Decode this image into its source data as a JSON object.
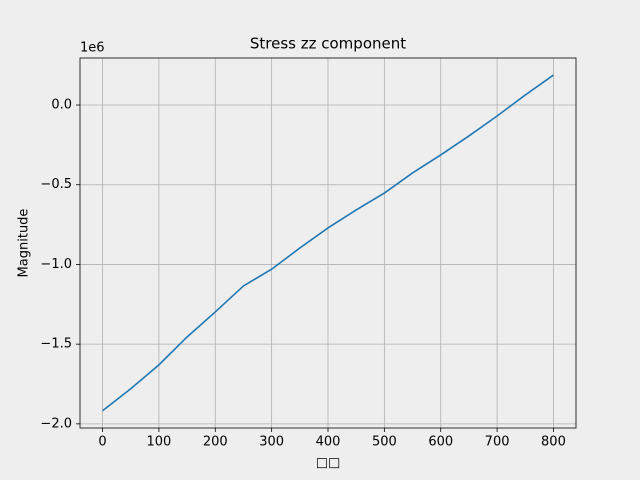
{
  "chart_data": {
    "type": "line",
    "title": "Stress zz component",
    "xlabel": "□□",
    "ylabel": "Magnitude",
    "y_offset_text": "1e6",
    "x": [
      0,
      50,
      100,
      150,
      200,
      250,
      300,
      350,
      400,
      450,
      500,
      550,
      600,
      650,
      700,
      750,
      800
    ],
    "series": [
      {
        "name": "stress_zz",
        "color": "#1f77b4",
        "values": [
          -1.918,
          -1.78,
          -1.63,
          -1.455,
          -1.298,
          -1.135,
          -1.03,
          -0.897,
          -0.771,
          -0.658,
          -0.552,
          -0.426,
          -0.313,
          -0.194,
          -0.069,
          0.063,
          0.188
        ]
      }
    ],
    "xlim": [
      -40,
      840
    ],
    "xticks": [
      0,
      100,
      200,
      300,
      400,
      500,
      600,
      700,
      800
    ],
    "ylim": [
      -2.026,
      0.295
    ],
    "yticks": [
      {
        "value": -2.0,
        "label": "−2.0"
      },
      {
        "value": -1.5,
        "label": "−1.5"
      },
      {
        "value": -1.0,
        "label": "−1.0"
      },
      {
        "value": -0.5,
        "label": "−0.5"
      },
      {
        "value": 0.0,
        "label": "0.0"
      }
    ],
    "grid": true
  }
}
